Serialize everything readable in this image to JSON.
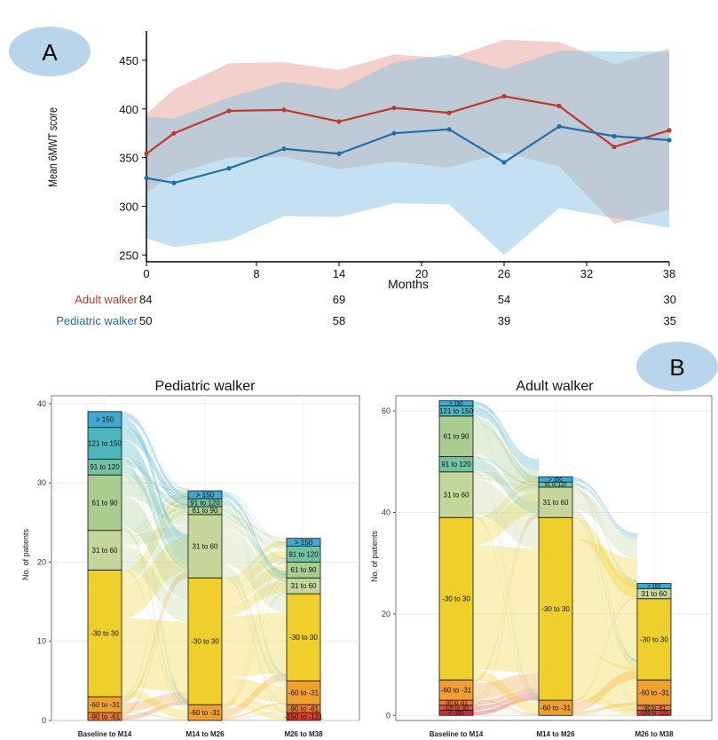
{
  "panel_labels": {
    "a": "A",
    "b": "B"
  },
  "colors": {
    "adult": "#c0392b",
    "adult_band": "#e8a197",
    "pediatric": "#1f6fad",
    "pediatric_band": "#8cc4e3",
    "badge": "#b9d5ec",
    "stratum_border": "#111111"
  },
  "chart_data": [
    {
      "id": "line",
      "type": "line",
      "title": "",
      "xlabel": "Months",
      "ylabel": "Mean 6MWT score",
      "xlim": [
        0,
        38
      ],
      "ylim": [
        243,
        480
      ],
      "xticks": [
        0,
        8,
        14,
        20,
        26,
        32,
        38
      ],
      "yticks": [
        250,
        300,
        350,
        400,
        450
      ],
      "series": [
        {
          "name": "Adult walker",
          "color": "#c0392b",
          "x": [
            0,
            2,
            6,
            10,
            14,
            18,
            22,
            26,
            30,
            34,
            38
          ],
          "y": [
            354,
            375,
            398,
            399,
            387,
            401,
            396,
            413,
            403,
            361,
            378
          ],
          "upper": [
            395,
            420,
            447,
            448,
            440,
            456,
            452,
            471,
            469,
            446,
            462
          ],
          "lower": [
            314,
            333,
            350,
            351,
            338,
            346,
            340,
            355,
            341,
            282,
            296
          ]
        },
        {
          "name": "Pediatric walker",
          "color": "#1f6fad",
          "x": [
            0,
            2,
            6,
            10,
            14,
            18,
            22,
            26,
            30,
            34,
            38
          ],
          "y": [
            329,
            324,
            339,
            359,
            354,
            375,
            379,
            345,
            382,
            372,
            368
          ],
          "upper": [
            392,
            390,
            412,
            428,
            420,
            448,
            456,
            441,
            460,
            459,
            459
          ],
          "lower": [
            267,
            258,
            265,
            290,
            289,
            303,
            302,
            250,
            298,
            288,
            278
          ]
        }
      ],
      "at_risk": {
        "times": [
          0,
          14,
          26,
          38
        ],
        "rows": [
          {
            "label": "Adult walker",
            "values": [
              "84",
              "69",
              "54",
              "30"
            ],
            "color": "#c0392b"
          },
          {
            "label": "Pediatric walker",
            "values": [
              "50",
              "58",
              "39",
              "35"
            ],
            "color": "#1f6fad"
          }
        ]
      }
    },
    {
      "id": "ped",
      "type": "alluvial",
      "title": "Pediatric walker",
      "ylabel": "No. of patients",
      "ylim": [
        0,
        41
      ],
      "yticks": [
        0,
        10,
        20,
        30,
        40
      ],
      "axes": [
        "Baseline to M14",
        "M14 to M26",
        "M26 to M38"
      ],
      "strata": [
        [
          {
            "label": "-90 to -61",
            "n": 1
          },
          {
            "label": "-60 to -31",
            "n": 2
          },
          {
            "label": "-30 to 30",
            "n": 16
          },
          {
            "label": "31 to 60",
            "n": 5
          },
          {
            "label": "61 to 90",
            "n": 7
          },
          {
            "label": "91 to 120",
            "n": 2
          },
          {
            "label": "121 to 150",
            "n": 4
          },
          {
            "label": "> 150",
            "n": 2
          }
        ],
        [
          {
            "label": "-60 to -31",
            "n": 2
          },
          {
            "label": "-30 to 30",
            "n": 16
          },
          {
            "label": "31 to 60",
            "n": 8
          },
          {
            "label": "61 to 90",
            "n": 1
          },
          {
            "label": "91 to 120",
            "n": 1
          },
          {
            "label": "> 150",
            "n": 1
          }
        ],
        [
          {
            "label": "-150 to -121",
            "n": 1
          },
          {
            "label": "-90 to -61",
            "n": 1
          },
          {
            "label": "-60 to -31",
            "n": 3
          },
          {
            "label": "-30 to 30",
            "n": 11
          },
          {
            "label": "31 to 60",
            "n": 2
          },
          {
            "label": "61 to 90",
            "n": 2
          },
          {
            "label": "91 to 120",
            "n": 2
          },
          {
            "label": "> 150",
            "n": 1
          }
        ]
      ]
    },
    {
      "id": "adult",
      "type": "alluvial",
      "title": "Adult walker",
      "ylabel": "No. of patients",
      "ylim": [
        -1,
        63
      ],
      "yticks": [
        0,
        20,
        40,
        60
      ],
      "axes": [
        "Baseline to M14",
        "M14 to M26",
        "M26 to M38"
      ],
      "strata": [
        [
          {
            "label": "< -150",
            "n": 1
          },
          {
            "label": "-120 to -91",
            "n": 1
          },
          {
            "label": "-90 to -61",
            "n": 1
          },
          {
            "label": "-60 to -31",
            "n": 4
          },
          {
            "label": "-30 to 30",
            "n": 32
          },
          {
            "label": "31 to 60",
            "n": 9
          },
          {
            "label": "91 to 120",
            "n": 3
          },
          {
            "label": "61 to 90",
            "n": 8
          },
          {
            "label": "121 to 150",
            "n": 2
          },
          {
            "label": "> 150",
            "n": 1
          }
        ],
        [
          {
            "label": "-60 to -31",
            "n": 3
          },
          {
            "label": "-30 to 30",
            "n": 36
          },
          {
            "label": "31 to 60",
            "n": 6
          },
          {
            "label": "91 to 120",
            "n": 1
          },
          {
            "label": "> 150",
            "n": 1
          }
        ],
        [
          {
            "label": "-150 to -121",
            "n": 1
          },
          {
            "label": "-90 to -61",
            "n": 1
          },
          {
            "label": "-60 to -31",
            "n": 5
          },
          {
            "label": "-30 to 30",
            "n": 16
          },
          {
            "label": "31 to 60",
            "n": 2
          },
          {
            "label": "> 150",
            "n": 1
          }
        ]
      ]
    }
  ]
}
